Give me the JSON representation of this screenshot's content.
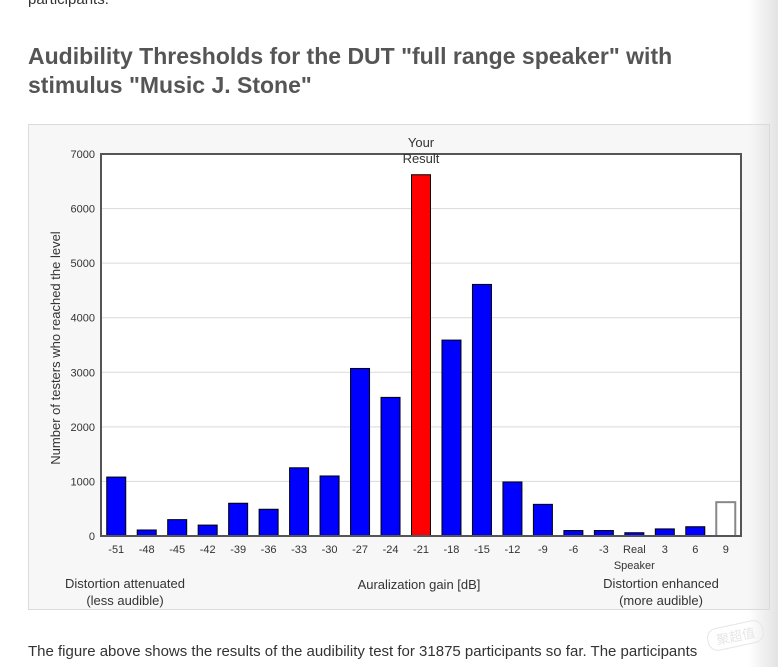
{
  "page": {
    "top_text": "participants.",
    "title": "Audibility Thresholds for the DUT \"full range speaker\" with stimulus \"Music J. Stone\"",
    "body_text": "The figure above shows the results of the audibility test for 31875 participants so far. The participants",
    "watermark": "聚超值"
  },
  "chart_data": {
    "type": "bar",
    "categories": [
      "-51",
      "-48",
      "-45",
      "-42",
      "-39",
      "-36",
      "-33",
      "-30",
      "-27",
      "-24",
      "-21",
      "-18",
      "-15",
      "-12",
      "-9",
      "-6",
      "-3",
      "Real Speaker",
      "3",
      "6",
      "9"
    ],
    "values": [
      1080,
      110,
      300,
      200,
      600,
      490,
      1250,
      1100,
      3070,
      2540,
      6620,
      3590,
      4610,
      990,
      580,
      100,
      100,
      60,
      130,
      170,
      620
    ],
    "highlight_index": 10,
    "highlight_label": "Your Result",
    "outlined_index": 20,
    "ylabel": "Number of testers who reached the level",
    "xlabel": "Auralization gain [dB]",
    "left_note": "Distortion attenuated (less audible)",
    "right_note": "Distortion enhanced (more audible)",
    "ylim": [
      0,
      7000
    ],
    "yticks": [
      0,
      1000,
      2000,
      3000,
      4000,
      5000,
      6000,
      7000
    ],
    "grid": true,
    "colors": {
      "bar": "#0000ff",
      "highlight": "#ff0000",
      "outlined_fill": "#ffffff",
      "outline": "#888888"
    }
  }
}
